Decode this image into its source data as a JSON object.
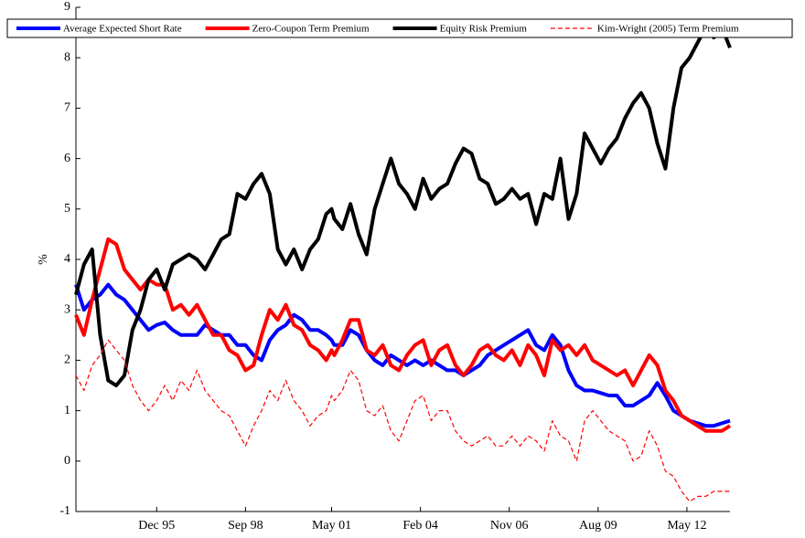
{
  "chart_data": {
    "type": "line",
    "y_label": "%",
    "x": [
      "Jun 93",
      "Sep 93",
      "Dec 93",
      "Mar 94",
      "Jun 94",
      "Sep 94",
      "Dec 94",
      "Mar 95",
      "Jun 95",
      "Sep 95",
      "Dec 95",
      "Mar 96",
      "Jun 96",
      "Sep 96",
      "Dec 96",
      "Mar 97",
      "Jun 97",
      "Sep 97",
      "Dec 97",
      "Mar 98",
      "Jun 98",
      "Sep 98",
      "Dec 98",
      "Mar 99",
      "Jun 99",
      "Sep 99",
      "Dec 99",
      "Mar 00",
      "Jun 00",
      "Sep 00",
      "Dec 00",
      "Mar 01",
      "May 01",
      "Jun 01",
      "Sep 01",
      "Dec 01",
      "Mar 02",
      "Jun 02",
      "Sep 02",
      "Dec 02",
      "Mar 03",
      "Jun 03",
      "Sep 03",
      "Dec 03",
      "Mar 04",
      "Jun 04",
      "Sep 04",
      "Dec 04",
      "Mar 05",
      "Jun 05",
      "Sep 05",
      "Dec 05",
      "Mar 06",
      "Jun 06",
      "Sep 06",
      "Dec 06",
      "Mar 07",
      "Jun 07",
      "Sep 07",
      "Dec 07",
      "Mar 08",
      "Jun 08",
      "Sep 08",
      "Dec 08",
      "Mar 09",
      "Jun 09",
      "Sep 09",
      "Dec 09",
      "Mar 10",
      "Jun 10",
      "Sep 10",
      "Dec 10",
      "Mar 11",
      "Jun 11",
      "Sep 11",
      "Dec 11",
      "Mar 12",
      "Jun 12",
      "Sep 12",
      "Dec 12",
      "Mar 13",
      "Jun 13",
      "Sep 13"
    ],
    "series": [
      {
        "name": "Average Expected Short Rate",
        "color": "#0000ff",
        "dashed": false,
        "values": [
          3.5,
          3.0,
          3.2,
          3.3,
          3.5,
          3.3,
          3.2,
          3.0,
          2.8,
          2.6,
          2.7,
          2.75,
          2.6,
          2.5,
          2.5,
          2.5,
          2.7,
          2.6,
          2.5,
          2.5,
          2.3,
          2.3,
          2.1,
          2.0,
          2.4,
          2.6,
          2.7,
          2.9,
          2.8,
          2.6,
          2.6,
          2.5,
          2.4,
          2.3,
          2.3,
          2.6,
          2.5,
          2.2,
          2.0,
          1.9,
          2.1,
          2.0,
          1.9,
          2.0,
          1.9,
          2.0,
          1.9,
          1.8,
          1.8,
          1.7,
          1.8,
          1.9,
          2.1,
          2.2,
          2.3,
          2.4,
          2.5,
          2.6,
          2.3,
          2.2,
          2.5,
          2.3,
          1.8,
          1.5,
          1.4,
          1.4,
          1.35,
          1.3,
          1.3,
          1.1,
          1.1,
          1.2,
          1.3,
          1.55,
          1.3,
          1.0,
          0.9,
          0.8,
          0.75,
          0.7,
          0.7,
          0.75,
          0.8
        ]
      },
      {
        "name": "Zero-Coupon Term Premium",
        "color": "#ff0000",
        "dashed": false,
        "values": [
          2.9,
          2.5,
          3.2,
          3.8,
          4.4,
          4.3,
          3.8,
          3.6,
          3.4,
          3.6,
          3.5,
          3.5,
          3.0,
          3.1,
          2.9,
          3.1,
          2.8,
          2.5,
          2.5,
          2.2,
          2.1,
          1.8,
          1.9,
          2.5,
          3.0,
          2.8,
          3.1,
          2.7,
          2.6,
          2.3,
          2.2,
          2.0,
          2.2,
          2.1,
          2.4,
          2.8,
          2.8,
          2.2,
          2.1,
          2.3,
          1.9,
          1.8,
          2.1,
          2.3,
          2.4,
          1.9,
          2.2,
          2.3,
          1.9,
          1.7,
          1.9,
          2.2,
          2.3,
          2.1,
          2.0,
          2.2,
          1.9,
          2.3,
          2.1,
          1.7,
          2.4,
          2.2,
          2.3,
          2.1,
          2.3,
          2.0,
          1.9,
          1.8,
          1.7,
          1.8,
          1.5,
          1.8,
          2.1,
          1.9,
          1.4,
          1.2,
          0.9,
          0.8,
          0.7,
          0.6,
          0.6,
          0.6,
          0.7
        ]
      },
      {
        "name": "Equity Risk Premium",
        "color": "#000000",
        "dashed": false,
        "values": [
          3.3,
          3.9,
          4.2,
          2.5,
          1.6,
          1.5,
          1.7,
          2.6,
          3.0,
          3.6,
          3.8,
          3.4,
          3.9,
          4.0,
          4.1,
          4.0,
          3.8,
          4.1,
          4.4,
          4.5,
          5.3,
          5.2,
          5.5,
          5.7,
          5.3,
          4.2,
          3.9,
          4.2,
          3.8,
          4.2,
          4.4,
          4.9,
          5.0,
          4.8,
          4.6,
          5.1,
          4.5,
          4.1,
          5.0,
          5.5,
          6.0,
          5.5,
          5.3,
          5.0,
          5.6,
          5.2,
          5.4,
          5.5,
          5.9,
          6.2,
          6.1,
          5.6,
          5.5,
          5.1,
          5.2,
          5.4,
          5.2,
          5.3,
          4.7,
          5.3,
          5.2,
          6.0,
          4.8,
          5.3,
          6.5,
          6.2,
          5.9,
          6.2,
          6.4,
          6.8,
          7.1,
          7.3,
          7.0,
          6.3,
          5.8,
          7.0,
          7.8,
          8.0,
          8.3,
          8.6,
          8.4,
          8.6,
          8.2
        ]
      },
      {
        "name": "Kim-Wright (2005) Term Premium",
        "color": "#ff0000",
        "dashed": true,
        "values": [
          1.7,
          1.4,
          1.9,
          2.1,
          2.4,
          2.2,
          2.0,
          1.5,
          1.2,
          1.0,
          1.2,
          1.5,
          1.2,
          1.6,
          1.4,
          1.8,
          1.4,
          1.2,
          1.0,
          0.9,
          0.6,
          0.3,
          0.7,
          1.0,
          1.4,
          1.2,
          1.6,
          1.2,
          1.0,
          0.7,
          0.9,
          1.0,
          1.3,
          1.2,
          1.4,
          1.8,
          1.6,
          1.0,
          0.9,
          1.1,
          0.6,
          0.4,
          0.8,
          1.2,
          1.3,
          0.8,
          1.0,
          1.0,
          0.6,
          0.4,
          0.3,
          0.4,
          0.5,
          0.3,
          0.3,
          0.5,
          0.3,
          0.5,
          0.4,
          0.2,
          0.8,
          0.5,
          0.4,
          0.0,
          0.8,
          1.0,
          0.8,
          0.6,
          0.5,
          0.4,
          0.0,
          0.1,
          0.6,
          0.3,
          -0.2,
          -0.3,
          -0.6,
          -0.8,
          -0.7,
          -0.7,
          -0.6,
          -0.6,
          -0.6
        ]
      }
    ],
    "xlim": [
      "Jun 93",
      "Sep 13"
    ],
    "xticks": [
      "Dec 95",
      "Sep 98",
      "May 01",
      "Feb 04",
      "Nov 06",
      "Aug 09",
      "May 12"
    ],
    "ylim": [
      -1,
      9
    ],
    "yticks": [
      -1,
      0,
      1,
      2,
      3,
      4,
      5,
      6,
      7,
      8,
      9
    ],
    "legend": "top"
  }
}
